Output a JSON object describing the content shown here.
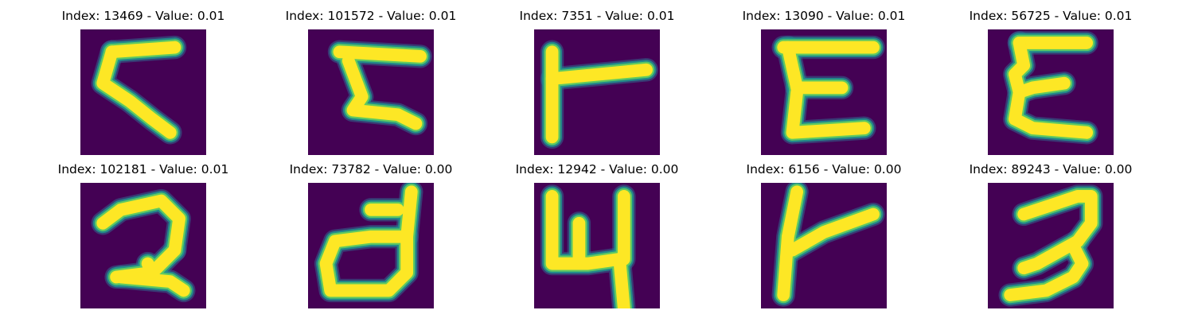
{
  "colors": {
    "background": "#440154",
    "stroke_core": "#fde725",
    "stroke_mid": "#5ec962",
    "stroke_edge": "#21918c",
    "stroke_outer": "#31688e"
  },
  "panels": [
    {
      "title": "Index: 13469 - Value: 0.01",
      "glyph": "sample-13469"
    },
    {
      "title": "Index: 101572 - Value: 0.01",
      "glyph": "sample-101572"
    },
    {
      "title": "Index: 7351 - Value: 0.01",
      "glyph": "sample-7351"
    },
    {
      "title": "Index: 13090 - Value: 0.01",
      "glyph": "sample-13090"
    },
    {
      "title": "Index: 56725 - Value: 0.01",
      "glyph": "sample-56725"
    },
    {
      "title": "Index: 102181 - Value: 0.01",
      "glyph": "sample-102181"
    },
    {
      "title": "Index: 73782 - Value: 0.00",
      "glyph": "sample-73782"
    },
    {
      "title": "Index: 12942 - Value: 0.00",
      "glyph": "sample-12942"
    },
    {
      "title": "Index: 6156 - Value: 0.00",
      "glyph": "sample-6156"
    },
    {
      "title": "Index: 89243 - Value: 0.00",
      "glyph": "sample-89243"
    }
  ]
}
